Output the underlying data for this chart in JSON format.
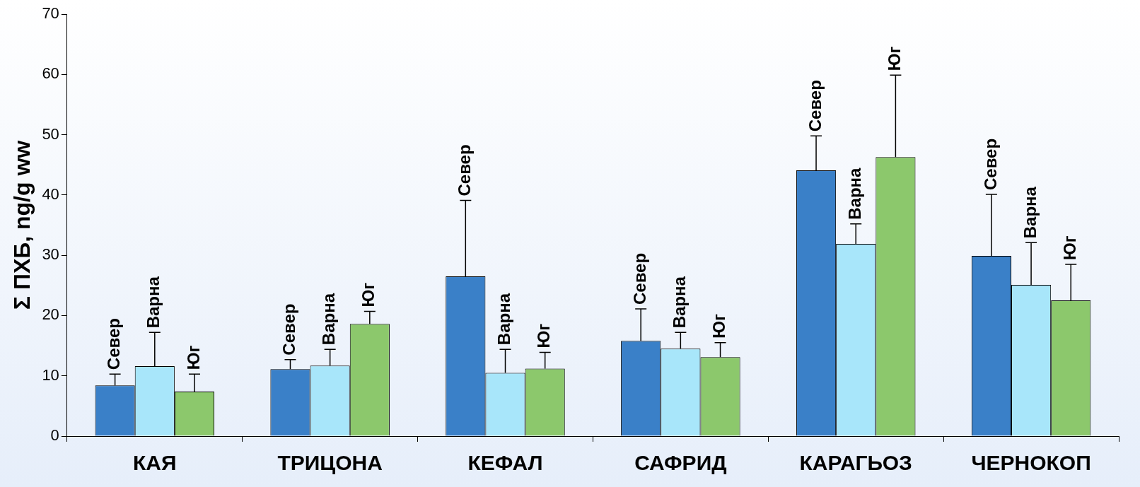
{
  "chart_data": {
    "type": "bar",
    "ylabel": "Σ ПХБ, ng/g ww",
    "categories": [
      "КАЯ",
      "ТРИЦОНА",
      "КЕФАЛ",
      "САФРИД",
      "КАРАГЬОЗ",
      "ЧЕРНОКОП"
    ],
    "series": [
      {
        "name": "Север",
        "color": "#3a80c8",
        "values": [
          8.4,
          11.1,
          26.5,
          15.8,
          44.1,
          29.9
        ],
        "errors": [
          [
            8.4,
            10.3
          ],
          [
            11.1,
            12.7
          ],
          [
            26.5,
            39.1
          ],
          [
            15.8,
            21.1
          ],
          [
            44.1,
            49.8
          ],
          [
            29.9,
            40.1
          ]
        ]
      },
      {
        "name": "Варна",
        "color": "#a8e6fa",
        "values": [
          11.6,
          11.7,
          10.5,
          14.5,
          31.9,
          25.1
        ],
        "errors": [
          [
            11.6,
            17.2
          ],
          [
            11.7,
            14.4
          ],
          [
            10.5,
            14.4
          ],
          [
            14.5,
            17.2
          ],
          [
            31.9,
            35.2
          ],
          [
            25.1,
            32.1
          ]
        ]
      },
      {
        "name": "Юг",
        "color": "#8cc86c",
        "values": [
          7.4,
          18.6,
          11.2,
          13.1,
          46.3,
          22.5
        ],
        "errors": [
          [
            7.4,
            10.3
          ],
          [
            18.6,
            20.7
          ],
          [
            11.2,
            13.9
          ],
          [
            13.1,
            15.5
          ],
          [
            46.3,
            59.9
          ],
          [
            22.5,
            28.5
          ]
        ]
      }
    ],
    "ylim": [
      0,
      70
    ],
    "yticks": [
      0,
      10,
      20,
      30,
      40,
      50,
      60,
      70
    ],
    "grid": false,
    "legend": false
  }
}
